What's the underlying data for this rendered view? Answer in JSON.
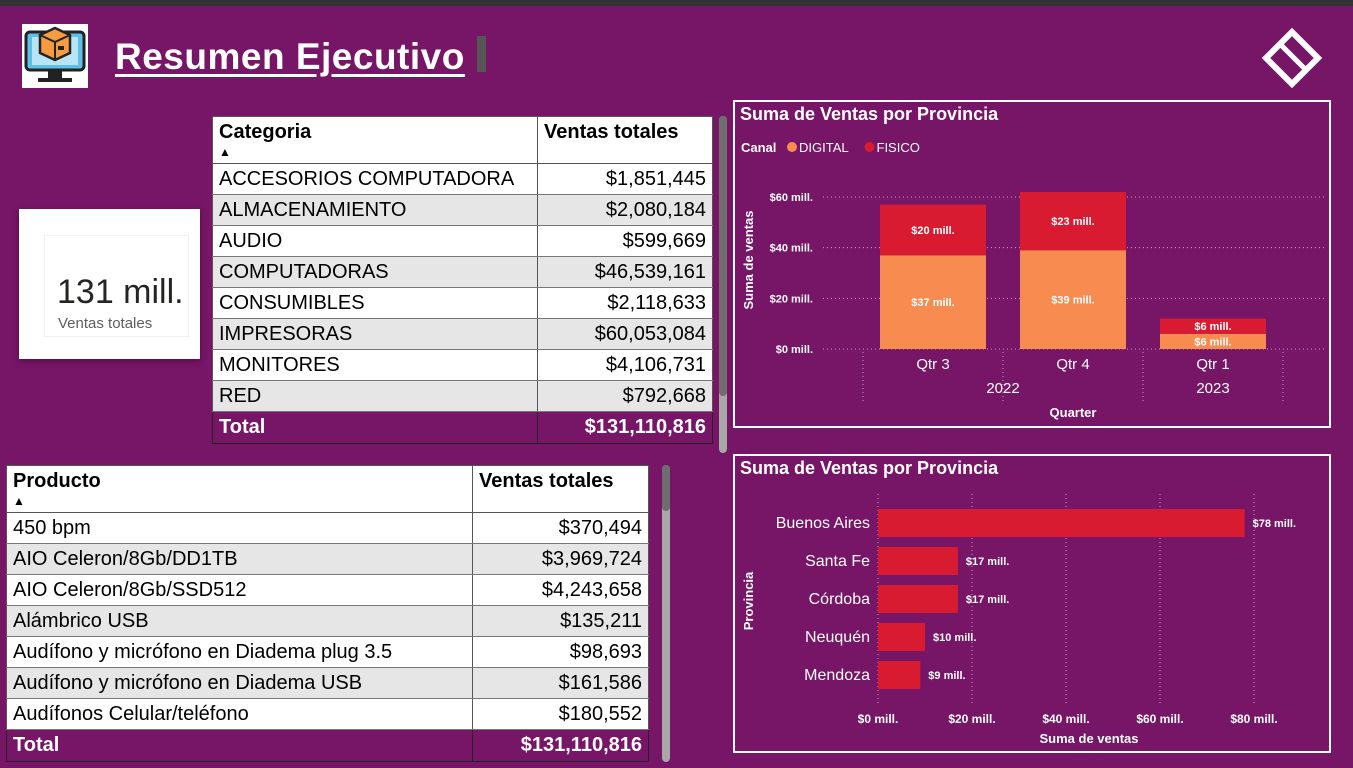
{
  "header": {
    "title": "Resumen Ejecutivo",
    "logo_icon": "computer-package-icon",
    "nav_icon": "diamond-nav-icon"
  },
  "kpi": {
    "value": "131 mill.",
    "label": "Ventas totales"
  },
  "category_table": {
    "headers": [
      "Categoria",
      "Ventas totales"
    ],
    "rows": [
      [
        "ACCESORIOS COMPUTADORA",
        "$1,851,445"
      ],
      [
        "ALMACENAMIENTO",
        "$2,080,184"
      ],
      [
        "AUDIO",
        "$599,669"
      ],
      [
        "COMPUTADORAS",
        "$46,539,161"
      ],
      [
        "CONSUMIBLES",
        "$2,118,633"
      ],
      [
        "IMPRESORAS",
        "$60,053,084"
      ],
      [
        "MONITORES",
        "$4,106,731"
      ],
      [
        "RED",
        "$792,668"
      ]
    ],
    "total_label": "Total",
    "total_value": "$131,110,816"
  },
  "product_table": {
    "headers": [
      "Producto",
      "Ventas totales"
    ],
    "rows": [
      [
        "450 bpm",
        "$370,494"
      ],
      [
        "AIO Celeron/8Gb/DD1TB",
        "$3,969,724"
      ],
      [
        "AIO Celeron/8Gb/SSD512",
        "$4,243,658"
      ],
      [
        "Alámbrico USB",
        "$135,211"
      ],
      [
        "Audífono y micrófono en Diadema plug 3.5",
        "$98,693"
      ],
      [
        "Audífono y micrófono en Diadema USB",
        "$161,586"
      ],
      [
        "Audífonos Celular/teléfono",
        "$180,552"
      ]
    ],
    "total_label": "Total",
    "total_value": "$131,110,816"
  },
  "colors": {
    "background": "#771566",
    "digital": "#F78B50",
    "fisico": "#D81B30"
  },
  "chart_data": [
    {
      "type": "bar",
      "stacked": true,
      "title": "Suma de Ventas por Provincia",
      "legend_title": "Canal",
      "legend_position": "top-left",
      "categories": [
        "Qtr 3",
        "Qtr 4",
        "Qtr 1"
      ],
      "category_groups": [
        {
          "label": "2022",
          "categories": [
            "Qtr 3",
            "Qtr 4"
          ]
        },
        {
          "label": "2023",
          "categories": [
            "Qtr 1"
          ]
        }
      ],
      "series": [
        {
          "name": "DIGITAL",
          "values": [
            37,
            39,
            6
          ],
          "labels": [
            "$37 mill.",
            "$39 mill.",
            "$6 mill."
          ]
        },
        {
          "name": "FISICO",
          "values": [
            20,
            23,
            6
          ],
          "labels": [
            "$20 mill.",
            "$23 mill.",
            "$6 mill."
          ]
        }
      ],
      "xlabel": "Quarter",
      "ylabel": "Suma de ventas",
      "yticks": [
        "$0 mill.",
        "$20 mill.",
        "$40 mill.",
        "$60 mill."
      ],
      "ylim": [
        0,
        60
      ],
      "grid": true
    },
    {
      "type": "bar",
      "orientation": "horizontal",
      "title": "Suma de Ventas por Provincia",
      "categories": [
        "Buenos Aires",
        "Santa Fe",
        "Córdoba",
        "Neuquén",
        "Mendoza"
      ],
      "values": [
        78,
        17,
        17,
        10,
        9
      ],
      "labels": [
        "$78 mill.",
        "$17 mill.",
        "$17 mill.",
        "$10 mill.",
        "$9 mill."
      ],
      "xlabel": "Suma de ventas",
      "ylabel": "Provincia",
      "xticks": [
        "$0 mill.",
        "$20 mill.",
        "$40 mill.",
        "$60 mill.",
        "$80 mill."
      ],
      "xlim": [
        0,
        80
      ],
      "grid": true
    }
  ]
}
